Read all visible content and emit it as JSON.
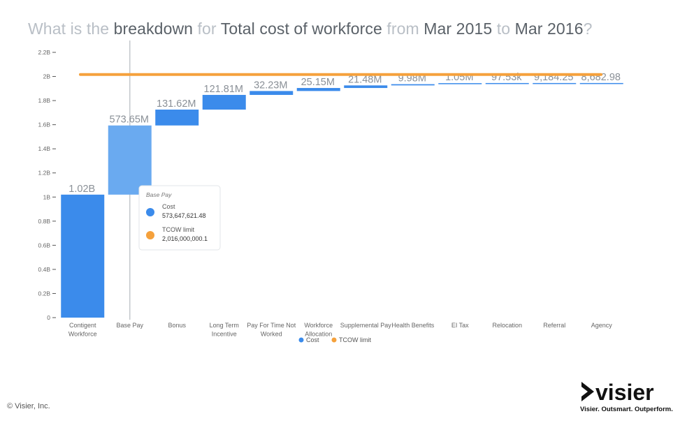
{
  "question": {
    "parts": [
      {
        "text": "What is the ",
        "style": "muted"
      },
      {
        "text": "breakdown",
        "style": "strong"
      },
      {
        "text": " for ",
        "style": "muted"
      },
      {
        "text": "Total cost of workforce",
        "style": "strong"
      },
      {
        "text": " from ",
        "style": "muted"
      },
      {
        "text": "Mar 2015",
        "style": "strong"
      },
      {
        "text": " to ",
        "style": "muted"
      },
      {
        "text": "Mar 2016",
        "style": "strong"
      },
      {
        "text": "?",
        "style": "muted"
      }
    ]
  },
  "chart_data": {
    "type": "bar",
    "subtype": "waterfall",
    "categories": [
      [
        "Contigent",
        "Workforce"
      ],
      [
        "Base Pay"
      ],
      [
        "Bonus"
      ],
      [
        "Long Term",
        "Incentive"
      ],
      [
        "Pay For Time Not",
        "Worked"
      ],
      [
        "Workforce",
        "Allocation"
      ],
      [
        "Supplemental Pay"
      ],
      [
        "Health Benefits"
      ],
      [
        "EI Tax"
      ],
      [
        "Relocation"
      ],
      [
        "Referral"
      ],
      [
        "Agency"
      ]
    ],
    "values": [
      1020000000,
      573647621.48,
      131620000,
      121810000,
      32230000,
      25150000,
      21480000,
      9980000,
      1050000,
      97530,
      9184.25,
      8682.98
    ],
    "value_labels": [
      "1.02B",
      "573.65M",
      "131.62M",
      "121.81M",
      "32.23M",
      "25.15M",
      "21.48M",
      "9.98M",
      "1.05M",
      "97.53k",
      "9,184.25",
      "8,682.98"
    ],
    "y_ticks": [
      {
        "value": 0,
        "label": "0"
      },
      {
        "value": 200000000,
        "label": "0.2B"
      },
      {
        "value": 400000000,
        "label": "0.4B"
      },
      {
        "value": 600000000,
        "label": "0.6B"
      },
      {
        "value": 800000000,
        "label": "0.8B"
      },
      {
        "value": 1000000000,
        "label": "1B"
      },
      {
        "value": 1200000000,
        "label": "1.2B"
      },
      {
        "value": 1400000000,
        "label": "1.4B"
      },
      {
        "value": 1600000000,
        "label": "1.6B"
      },
      {
        "value": 1800000000,
        "label": "1.8B"
      },
      {
        "value": 2000000000,
        "label": "2B"
      },
      {
        "value": 2200000000,
        "label": "2.2B"
      }
    ],
    "ylim": [
      0,
      2200000000
    ],
    "series": [
      {
        "name": "Cost",
        "color": "#3b8beb"
      },
      {
        "name": "TCOW limit",
        "color": "#f5a13c",
        "type": "line",
        "value": 2016000000.1
      }
    ],
    "highlighted_index": 1,
    "highlight_color": "#6aaaf0",
    "legend_position": "bottom-center",
    "grid": false,
    "tooltip": {
      "title": "Base Pay",
      "items": [
        {
          "name": "Cost",
          "value": "573,647,621.48",
          "color": "#3b8beb"
        },
        {
          "name": "TCOW limit",
          "value": "2,016,000,000.1",
          "color": "#f5a13c"
        }
      ]
    }
  },
  "footer": {
    "copyright": "© Visier, Inc.",
    "logo_text": "visier",
    "tagline": "Visier. Outsmart. Outperform."
  }
}
